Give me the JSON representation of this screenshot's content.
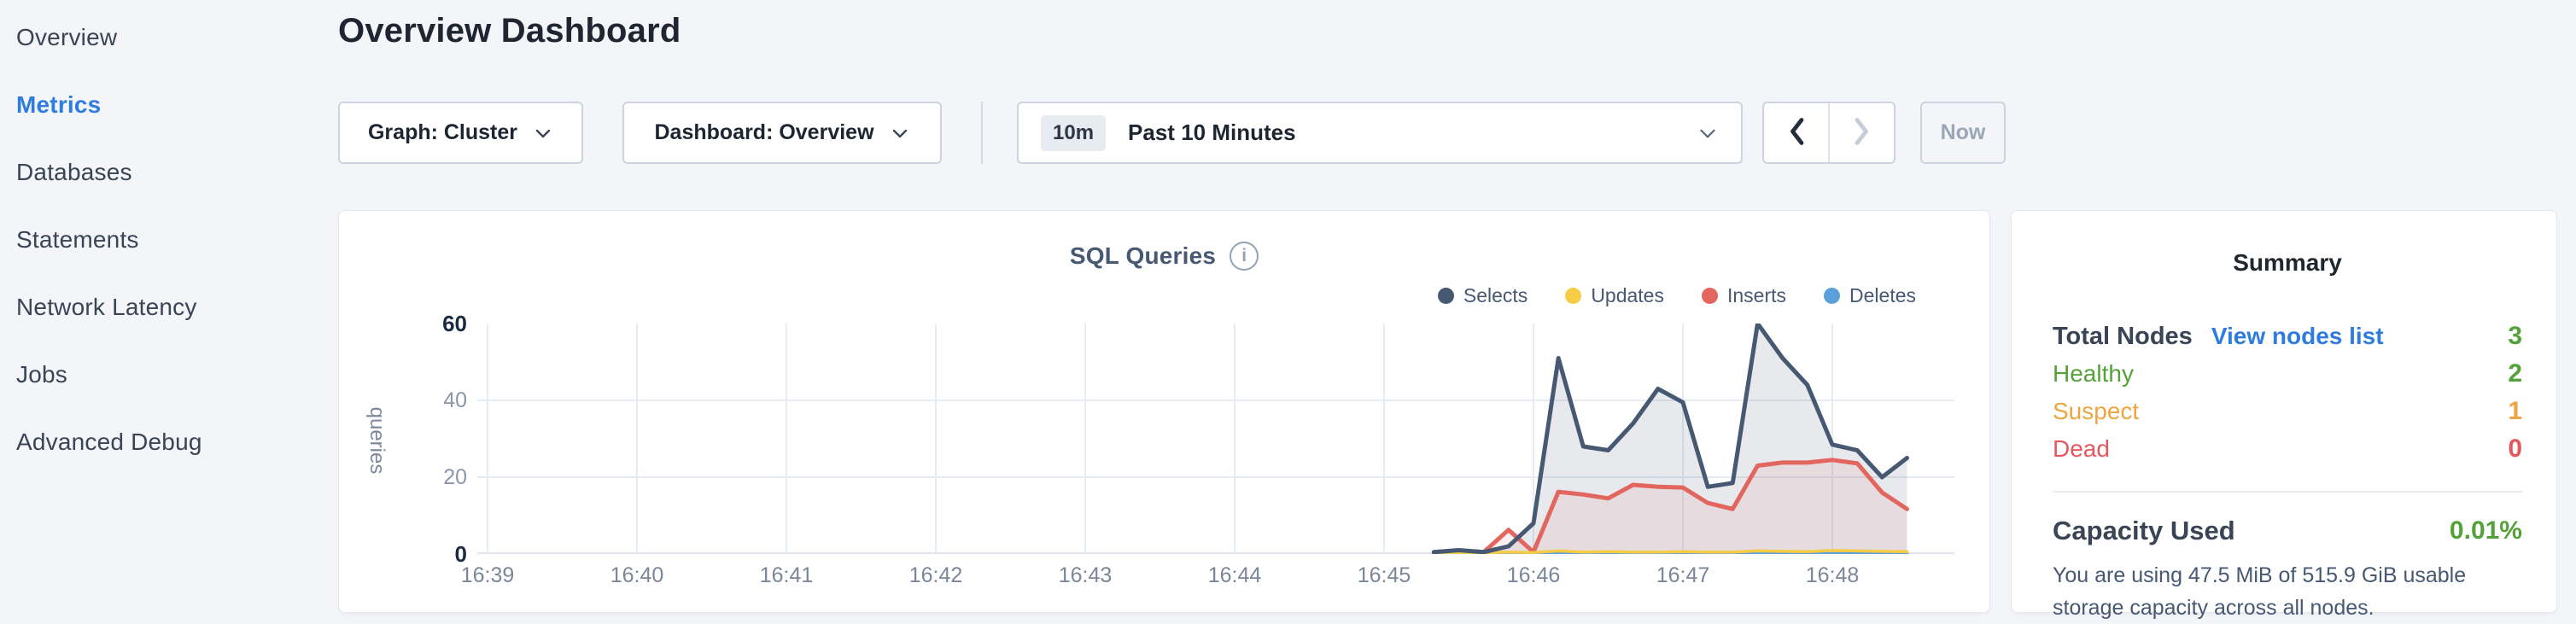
{
  "colors": {
    "blue": "#2f7ce0",
    "green": "#55a139",
    "orange": "#efa53f",
    "red": "#e5575c"
  },
  "sidebar": {
    "items": [
      {
        "label": "Overview",
        "active": false
      },
      {
        "label": "Metrics",
        "active": true
      },
      {
        "label": "Databases",
        "active": false
      },
      {
        "label": "Statements",
        "active": false
      },
      {
        "label": "Network Latency",
        "active": false
      },
      {
        "label": "Jobs",
        "active": false
      },
      {
        "label": "Advanced Debug",
        "active": false
      }
    ]
  },
  "header": {
    "title": "Overview Dashboard"
  },
  "toolbar": {
    "graph_dropdown": "Graph: Cluster",
    "dashboard_dropdown": "Dashboard: Overview",
    "time_selector": {
      "badge": "10m",
      "label": "Past 10 Minutes"
    },
    "now_button": "Now"
  },
  "chart_data": {
    "type": "area",
    "title": "SQL Queries",
    "ylabel": "queries",
    "ylim": [
      0,
      60
    ],
    "y_ticks": [
      0,
      20,
      40,
      60
    ],
    "grid_y": [
      20,
      40
    ],
    "grid": true,
    "legend_position": "top-right",
    "x_ticks": [
      "16:39",
      "16:40",
      "16:41",
      "16:42",
      "16:43",
      "16:44",
      "16:45",
      "16:46",
      "16:47",
      "16:48"
    ],
    "x_unit": "seconds after 16:39:00, samples every 10s",
    "x_seconds": [
      380,
      390,
      400,
      410,
      420,
      430,
      440,
      450,
      460,
      470,
      480,
      490,
      500,
      510,
      520,
      530,
      540,
      550,
      560,
      570
    ],
    "series": [
      {
        "name": "Selects",
        "color": "#475872",
        "line_width": 5,
        "fill_opacity": 0.13,
        "values": [
          0.5,
          1,
          0.5,
          2,
          8,
          51,
          28,
          27,
          34,
          43,
          39.5,
          17.5,
          18.5,
          60,
          51,
          44,
          28.5,
          27,
          20,
          25
        ]
      },
      {
        "name": "Updates",
        "color": "#f6cb45",
        "line_width": 3.5,
        "fill_opacity": 0,
        "values": [
          0.2,
          0.3,
          0.3,
          0.5,
          0.4,
          0.8,
          0.5,
          0.6,
          0.5,
          0.5,
          0.6,
          0.5,
          0.5,
          0.8,
          0.7,
          0.6,
          0.9,
          0.8,
          0.7,
          0.6
        ]
      },
      {
        "name": "Inserts",
        "color": "#e2655e",
        "line_width": 5,
        "fill_opacity": 0.1,
        "values": [
          0,
          0,
          0.5,
          6.3,
          0.5,
          16.2,
          15.5,
          14.5,
          18,
          17.5,
          17.3,
          13.3,
          11.7,
          23,
          23.8,
          23.8,
          24.5,
          23.6,
          16,
          11.7
        ]
      },
      {
        "name": "Deletes",
        "color": "#5ba0d9",
        "line_width": 3.5,
        "fill_opacity": 0,
        "values": [
          0.1,
          0.1,
          0.1,
          0.1,
          0.1,
          0.1,
          0.1,
          0.1,
          0.1,
          0.1,
          0.1,
          0.1,
          0.1,
          0.1,
          0.1,
          0.1,
          0.1,
          0.1,
          0.1,
          0.1
        ]
      }
    ]
  },
  "summary": {
    "title": "Summary",
    "total_nodes": {
      "label": "Total Nodes",
      "link": "View nodes list",
      "value": "3"
    },
    "node_statuses": [
      {
        "label": "Healthy",
        "value": "2",
        "color": "green"
      },
      {
        "label": "Suspect",
        "value": "1",
        "color": "orange"
      },
      {
        "label": "Dead",
        "value": "0",
        "color": "red"
      }
    ],
    "capacity": {
      "label": "Capacity Used",
      "value": "0.01%",
      "description": "You are using 47.5 MiB of 515.9 GiB usable storage capacity across all nodes."
    }
  }
}
